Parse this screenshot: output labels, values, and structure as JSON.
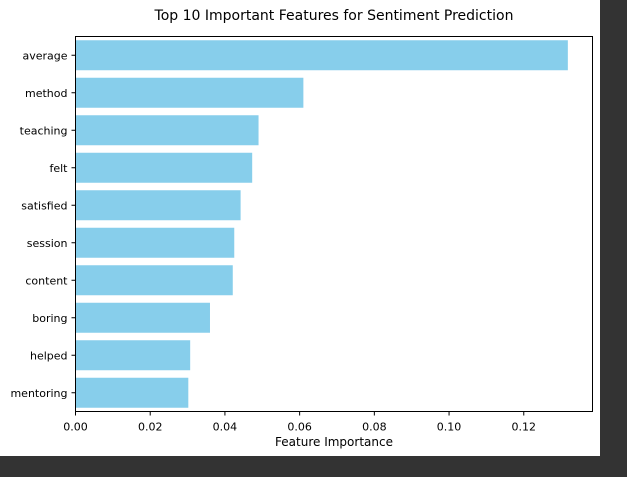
{
  "chart_data": {
    "type": "bar",
    "orientation": "horizontal",
    "title": "Top 10 Important Features for Sentiment Prediction",
    "xlabel": "Feature Importance",
    "ylabel": "",
    "categories": [
      "average",
      "method",
      "teaching",
      "felt",
      "satisfied",
      "session",
      "content",
      "boring",
      "helped",
      "mentoring"
    ],
    "values": [
      0.1318,
      0.061,
      0.049,
      0.0473,
      0.0442,
      0.0425,
      0.0421,
      0.036,
      0.0307,
      0.0302
    ],
    "xlim": [
      0,
      0.1384
    ],
    "xticks": [
      0.0,
      0.02,
      0.04,
      0.06,
      0.08,
      0.1,
      0.12
    ],
    "xtick_labels": [
      "0.00",
      "0.02",
      "0.04",
      "0.06",
      "0.08",
      "0.10",
      "0.12"
    ],
    "bar_color": "#87ceeb",
    "grid": false,
    "legend": "none"
  }
}
